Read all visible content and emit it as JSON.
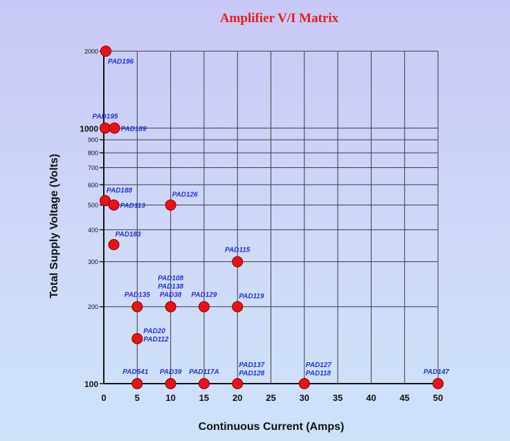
{
  "chart_data": {
    "type": "scatter",
    "title": "Amplifier V/I Matrix",
    "xlabel": "Continuous Current (Amps)",
    "ylabel": "Total Supply Voltage (Volts)",
    "xlim": [
      0,
      50
    ],
    "ylim": [
      100,
      2000
    ],
    "yscale": "log",
    "grid": true,
    "x_ticks": [
      0,
      5,
      10,
      15,
      20,
      25,
      30,
      35,
      40,
      45,
      50
    ],
    "y_ticks": [
      {
        "value": 100,
        "label": "100",
        "major": true
      },
      {
        "value": 200,
        "label": "200",
        "major": false
      },
      {
        "value": 300,
        "label": "300",
        "major": false
      },
      {
        "value": 400,
        "label": "400",
        "major": false
      },
      {
        "value": 500,
        "label": "500",
        "major": false
      },
      {
        "value": 600,
        "label": "600",
        "major": false
      },
      {
        "value": 700,
        "label": "700",
        "major": false
      },
      {
        "value": 800,
        "label": "800",
        "major": false
      },
      {
        "value": 900,
        "label": "900",
        "major": false
      },
      {
        "value": 1000,
        "label": "1000",
        "major": true
      },
      {
        "value": 2000,
        "label": "2000",
        "major": false
      }
    ],
    "marker_color": "#ee1111",
    "label_color": "#2233dd",
    "points": [
      {
        "x": 0.3,
        "y": 2000,
        "labels": [
          "PAD196"
        ],
        "label_pos": "below-right"
      },
      {
        "x": 0.2,
        "y": 1000,
        "labels": [
          "PAD195"
        ],
        "label_pos": "above"
      },
      {
        "x": 1.6,
        "y": 1000,
        "labels": [
          "PAD189"
        ],
        "label_pos": "right"
      },
      {
        "x": 0.2,
        "y": 520,
        "labels": [
          "PAD188"
        ],
        "label_pos": "above-right"
      },
      {
        "x": 1.5,
        "y": 500,
        "labels": [
          "PAD113"
        ],
        "label_pos": "right"
      },
      {
        "x": 10,
        "y": 500,
        "labels": [
          "PAD126"
        ],
        "label_pos": "above-right"
      },
      {
        "x": 1.5,
        "y": 350,
        "labels": [
          "PAD183"
        ],
        "label_pos": "above-right"
      },
      {
        "x": 20,
        "y": 300,
        "labels": [
          "PAD115"
        ],
        "label_pos": "above"
      },
      {
        "x": 5,
        "y": 200,
        "labels": [
          "PAD135"
        ],
        "label_pos": "above"
      },
      {
        "x": 10,
        "y": 200,
        "labels": [
          "PAD108",
          "PAD138",
          "PAD38"
        ],
        "label_pos": "above"
      },
      {
        "x": 15,
        "y": 200,
        "labels": [
          "PAD129"
        ],
        "label_pos": "above"
      },
      {
        "x": 20,
        "y": 200,
        "labels": [
          "PAD119"
        ],
        "label_pos": "above-right"
      },
      {
        "x": 5,
        "y": 150,
        "labels": [
          "PAD20",
          "PAD112"
        ],
        "label_pos": "right"
      },
      {
        "x": 5,
        "y": 100,
        "labels": [
          "PAD541"
        ],
        "label_pos": "above-left"
      },
      {
        "x": 10,
        "y": 100,
        "labels": [
          "PAD39"
        ],
        "label_pos": "above"
      },
      {
        "x": 15,
        "y": 100,
        "labels": [
          "PAD117A"
        ],
        "label_pos": "above"
      },
      {
        "x": 20,
        "y": 100,
        "labels": [
          "PAD137",
          "PAD128"
        ],
        "label_pos": "above-right"
      },
      {
        "x": 30,
        "y": 100,
        "labels": [
          "PAD127",
          "PAD118"
        ],
        "label_pos": "above-right"
      },
      {
        "x": 50,
        "y": 100,
        "labels": [
          "PAD147"
        ],
        "label_pos": "above-left"
      }
    ]
  }
}
